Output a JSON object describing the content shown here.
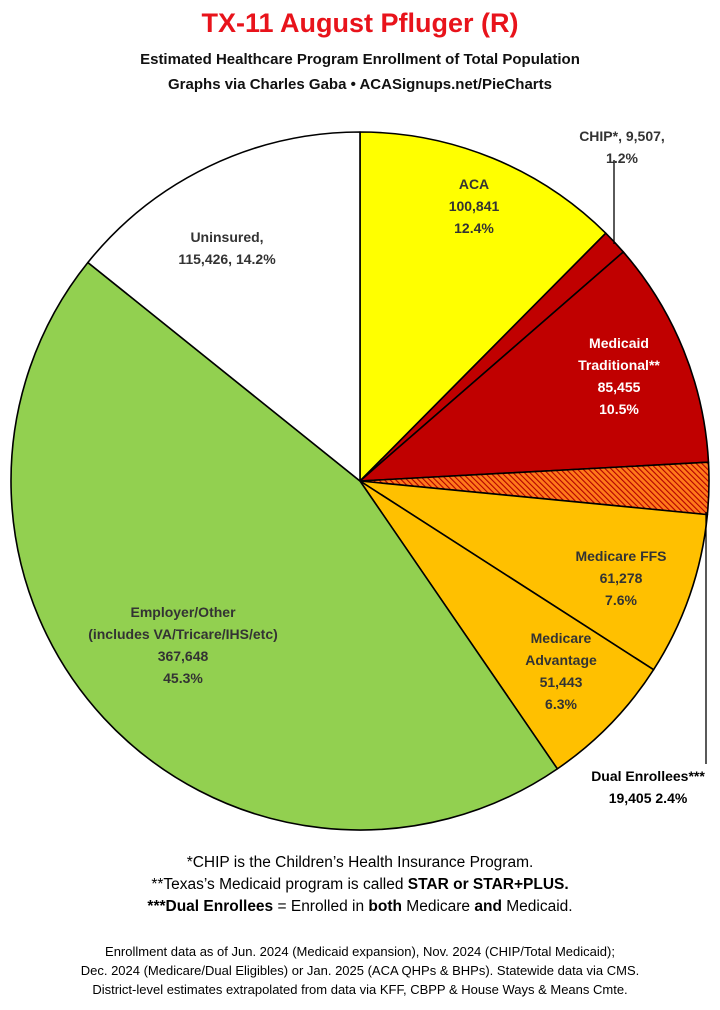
{
  "header": {
    "title": "TX-11 August Pfluger (R)",
    "subtitle_line1": "Estimated Healthcare Program Enrollment of Total Population",
    "subtitle_line2": "Graphs via Charles Gaba  •  ACASignups.net/PieCharts"
  },
  "chart_data": {
    "type": "pie",
    "start_angle_deg": 0,
    "direction": "clockwise",
    "slices": [
      {
        "name": "ACA",
        "value": 100841,
        "percent": 12.4,
        "color": "#ffff00",
        "label_lines": [
          "ACA",
          "100,841",
          "12.4%"
        ],
        "label_color": "#333333"
      },
      {
        "name": "CHIP*",
        "value": 9507,
        "percent": 1.2,
        "color": "#c00000",
        "label_lines": [
          "CHIP*, 9,507,",
          "1.2%"
        ],
        "label_color": "#333333"
      },
      {
        "name": "Medicaid Traditional**",
        "value": 85455,
        "percent": 10.5,
        "color": "#c00000",
        "label_lines": [
          "Medicaid",
          "Traditional**",
          "85,455",
          "10.5%"
        ],
        "label_color": "#ffffff"
      },
      {
        "name": "Dual Enrollees***",
        "value": 19405,
        "percent": 2.4,
        "color": "#ff6600",
        "pattern": "hatched",
        "label_lines": [
          "Dual Enrollees***",
          "19,405 2.4%"
        ],
        "label_color": "#000000"
      },
      {
        "name": "Medicare FFS",
        "value": 61278,
        "percent": 7.6,
        "color": "#ffc000",
        "label_lines": [
          "Medicare FFS",
          "61,278",
          "7.6%"
        ],
        "label_color": "#333333"
      },
      {
        "name": "Medicare Advantage",
        "value": 51443,
        "percent": 6.3,
        "color": "#ffc000",
        "label_lines": [
          "Medicare",
          "Advantage",
          "51,443",
          "6.3%"
        ],
        "label_color": "#333333"
      },
      {
        "name": "Employer/Other",
        "value": 367648,
        "percent": 45.3,
        "color": "#92d050",
        "label_lines": [
          "Employer/Other",
          "(includes VA/Tricare/IHS/etc)",
          "367,648",
          "45.3%"
        ],
        "label_color": "#333333"
      },
      {
        "name": "Uninsured",
        "value": 115426,
        "percent": 14.2,
        "color": "#ffffff",
        "label_lines": [
          "Uninsured,",
          "115,426, 14.2%"
        ],
        "label_color": "#333333"
      }
    ]
  },
  "notes": {
    "line1": "*CHIP is the Children’s Health Insurance Program.",
    "line2_a": "**Texas’s Medicaid program is called ",
    "line2_b": "STAR or STAR+PLUS.",
    "line3_a": "***Dual Enrollees",
    "line3_b": " = Enrolled in ",
    "line3_c": "both",
    "line3_d": " Medicare ",
    "line3_e": "and",
    "line3_f": " Medicaid."
  },
  "footer": {
    "line1": "Enrollment data as of Jun. 2024 (Medicaid expansion), Nov. 2024 (CHIP/Total Medicaid);",
    "line2": "Dec. 2024 (Medicare/Dual Eligibles) or Jan. 2025 (ACA QHPs & BHPs). Statewide data via CMS.",
    "line3": "District-level estimates extrapolated from data via KFF, CBPP & House Ways & Means Cmte."
  }
}
